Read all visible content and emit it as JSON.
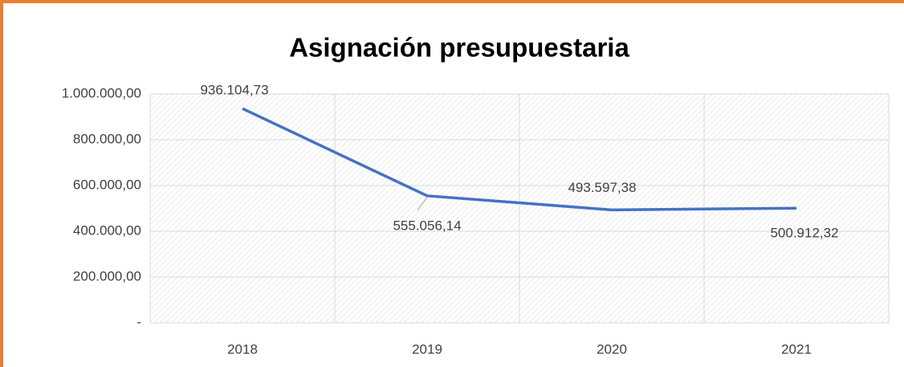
{
  "chart_data": {
    "type": "line",
    "title": "Asignación presupuestaria",
    "categories": [
      "2018",
      "2019",
      "2020",
      "2021"
    ],
    "values": [
      936104.73,
      555056.14,
      493597.38,
      500912.32
    ],
    "value_labels": [
      "936.104,73",
      "555.056,14",
      "493.597,38",
      "500.912,32"
    ],
    "color": "#4472c4",
    "ylim": [
      0,
      1000000
    ],
    "yticks": [
      {
        "value": 0,
        "label": "-"
      },
      {
        "value": 200000,
        "label": "200.000,00"
      },
      {
        "value": 400000,
        "label": "400.000,00"
      },
      {
        "value": 600000,
        "label": "600.000,00"
      },
      {
        "value": 800000,
        "label": "800.000,00"
      },
      {
        "value": 1000000,
        "label": "1.000.000,00"
      }
    ],
    "grid": true
  }
}
